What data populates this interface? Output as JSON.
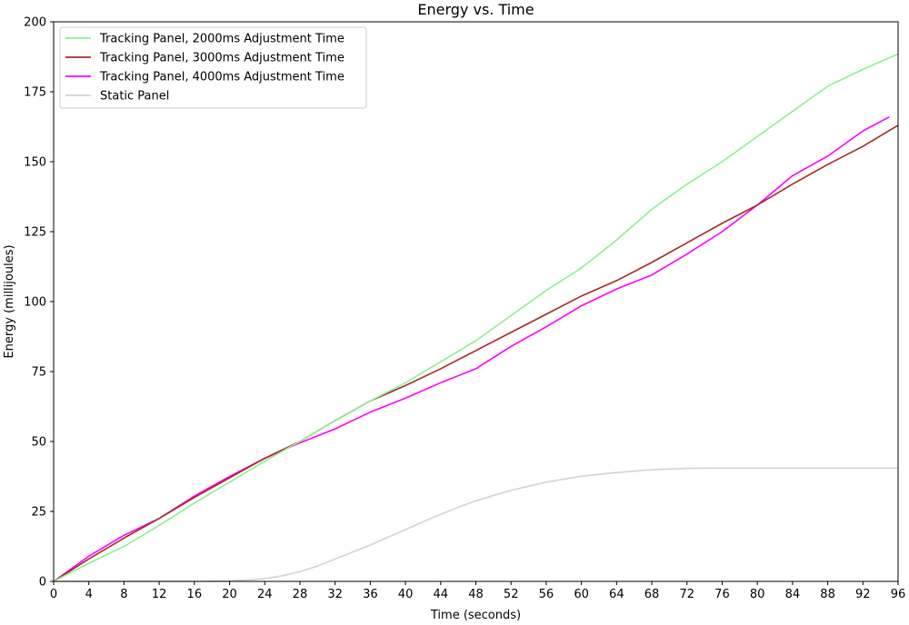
{
  "chart_data": {
    "type": "line",
    "title": "Energy vs. Time",
    "xlabel": "Time (seconds)",
    "ylabel": "Energy (millijoules)",
    "xlim": [
      0,
      96
    ],
    "ylim": [
      0,
      200
    ],
    "xticks": [
      0,
      4,
      8,
      12,
      16,
      20,
      24,
      28,
      32,
      36,
      40,
      44,
      48,
      52,
      56,
      60,
      64,
      68,
      72,
      76,
      80,
      84,
      88,
      92,
      96
    ],
    "yticks": [
      0,
      25,
      50,
      75,
      100,
      125,
      150,
      175,
      200
    ],
    "grid": false,
    "legend_position": "top-left",
    "series": [
      {
        "name": "Tracking Panel, 2000ms Adjustment Time",
        "color": "#90ee90",
        "x": [
          0,
          4,
          8,
          12,
          16,
          20,
          24,
          28,
          32,
          36,
          40,
          44,
          48,
          52,
          56,
          60,
          64,
          68,
          72,
          76,
          80,
          84,
          88,
          92,
          96
        ],
        "y": [
          0,
          6.5,
          12.5,
          20,
          28,
          35.5,
          43,
          50,
          57.5,
          64.5,
          71,
          78.5,
          86,
          95,
          104,
          112,
          122,
          133,
          142,
          150,
          159,
          168,
          177,
          183,
          188.5
        ]
      },
      {
        "name": "Tracking Panel, 3000ms Adjustment Time",
        "color": "#a52a2a",
        "x": [
          0,
          4,
          8,
          12,
          16,
          20,
          24,
          28,
          32,
          36,
          40,
          44,
          48,
          52,
          56,
          60,
          64,
          68,
          72,
          76,
          80,
          84,
          88,
          92,
          96
        ],
        "y": [
          0,
          8,
          15.5,
          22.5,
          30,
          37,
          44,
          50,
          57.5,
          64.5,
          70,
          76,
          82.5,
          89,
          95.5,
          102,
          107.5,
          114,
          121,
          128,
          134.5,
          142,
          149,
          155.5,
          163
        ]
      },
      {
        "name": "Tracking Panel, 4000ms Adjustment Time",
        "color": "#ff00ff",
        "x": [
          0,
          4,
          8,
          12,
          16,
          20,
          24,
          28,
          32,
          36,
          40,
          44,
          48,
          52,
          56,
          60,
          64,
          68,
          72,
          76,
          80,
          84,
          88,
          92,
          95
        ],
        "y": [
          0,
          9,
          16.5,
          22.5,
          30.5,
          37.5,
          44,
          49.5,
          54.5,
          60.5,
          65.5,
          71,
          76,
          84,
          91,
          98.5,
          104.5,
          109.5,
          117,
          125,
          134.5,
          145,
          152,
          161,
          166
        ]
      },
      {
        "name": "Static Panel",
        "color": "#d3d3d3",
        "x": [
          0,
          4,
          8,
          12,
          16,
          20,
          22,
          24,
          26,
          28,
          30,
          32,
          34,
          36,
          38,
          40,
          42,
          44,
          46,
          48,
          50,
          52,
          56,
          60,
          64,
          68,
          72,
          76,
          80,
          84,
          88,
          92,
          96
        ],
        "y": [
          0,
          0,
          0,
          0,
          0,
          0.2,
          0.5,
          1,
          2,
          3.5,
          5.5,
          8,
          10.5,
          13,
          15.8,
          18.5,
          21.3,
          24,
          26.5,
          28.8,
          30.7,
          32.5,
          35.5,
          37.6,
          38.9,
          39.9,
          40.4,
          40.5,
          40.5,
          40.5,
          40.5,
          40.5,
          40.5
        ]
      }
    ]
  }
}
